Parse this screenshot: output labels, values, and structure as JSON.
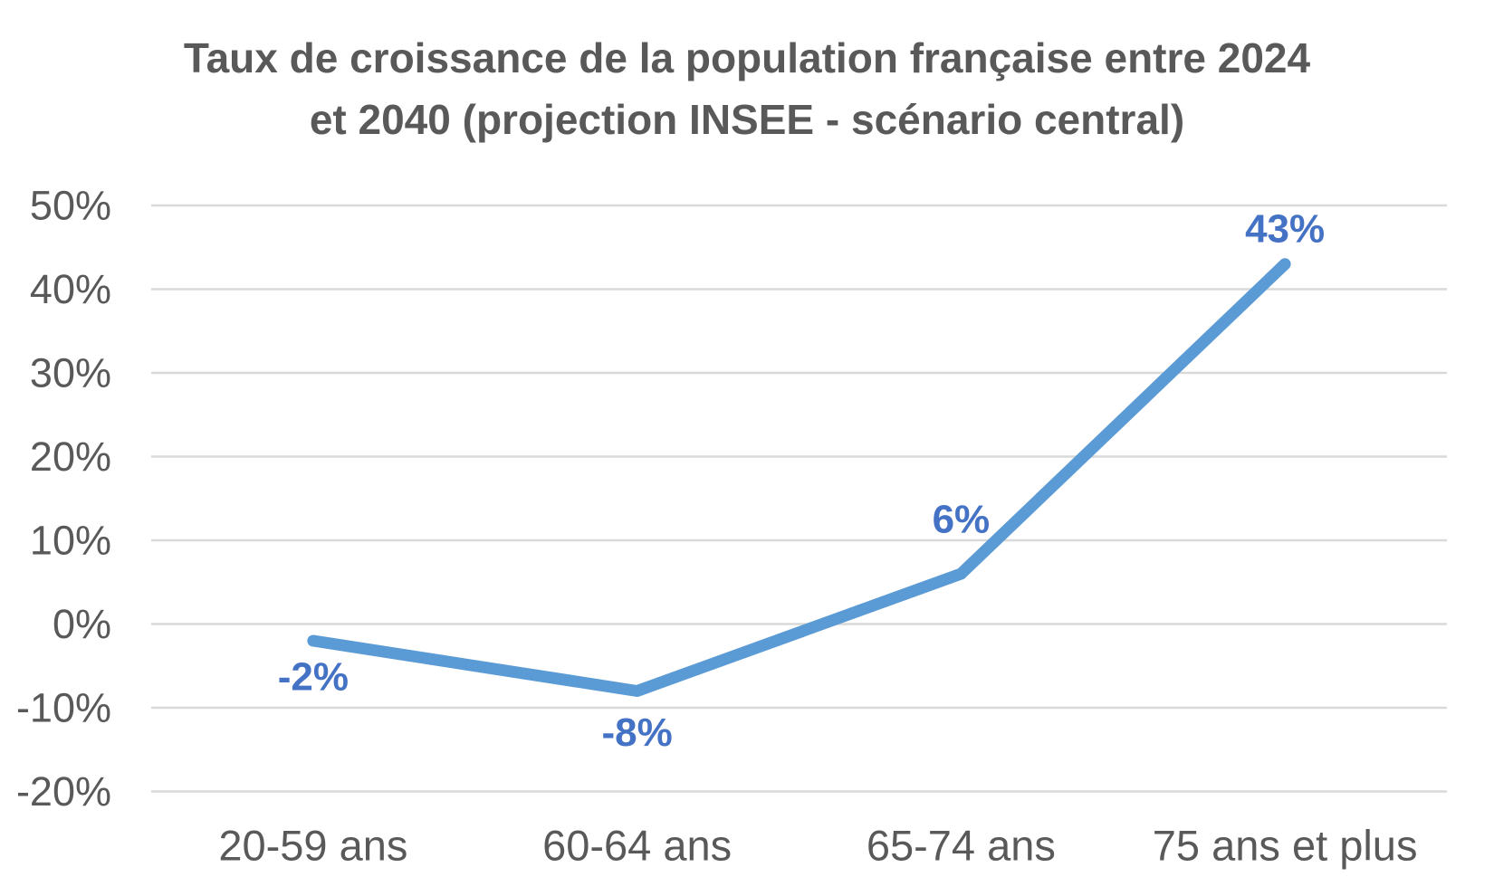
{
  "chart_data": {
    "type": "line",
    "title": "Taux de croissance de la population française entre 2024 et 2040 (projection INSEE - scénario central)",
    "title_lines": [
      "Taux de croissance de la population française entre 2024",
      "et 2040 (projection INSEE - scénario central)"
    ],
    "categories": [
      "20-59 ans",
      "60-64 ans",
      "65-74 ans",
      "75 ans et plus"
    ],
    "values": [
      -2,
      -8,
      6,
      43
    ],
    "data_labels": [
      "-2%",
      "-8%",
      "6%",
      "43%"
    ],
    "label_placement": [
      "below",
      "below",
      "above",
      "above"
    ],
    "label_dy": [
      40,
      46,
      -60,
      -39
    ],
    "yticks": [
      50,
      40,
      30,
      20,
      10,
      0,
      -10,
      -20
    ],
    "ytick_labels": [
      "50%",
      "40%",
      "30%",
      "20%",
      "10%",
      "0%",
      "-10%",
      "-20%"
    ],
    "ylim": [
      -20,
      50
    ],
    "xlabel": "",
    "ylabel": "",
    "grid": true,
    "legend": "none",
    "colors": {
      "line": "#5B9BD5",
      "data_label": "#4472C4",
      "title": "#595959",
      "tick_label": "#595959",
      "gridline": "#D9D9D9",
      "background": "#FFFFFF"
    }
  }
}
